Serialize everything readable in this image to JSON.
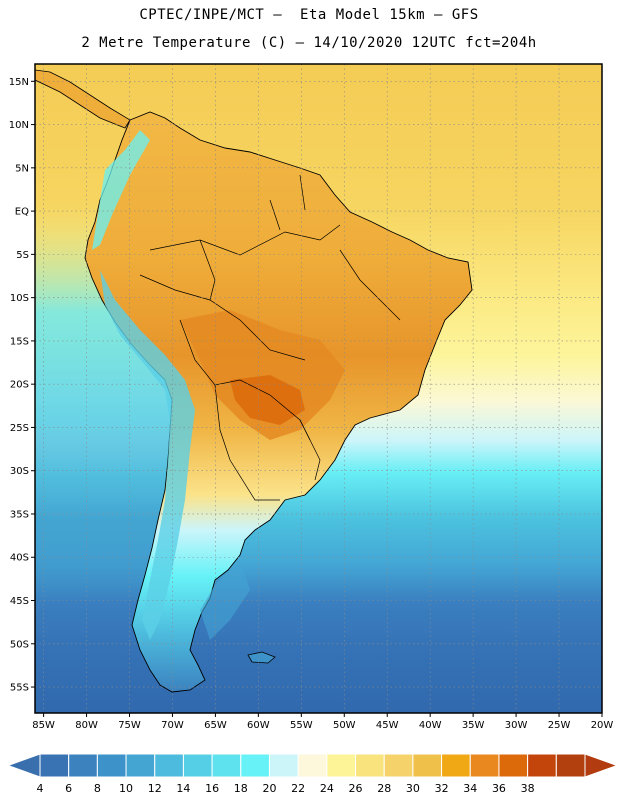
{
  "header": {
    "line1": "CPTEC/INPE/MCT –  Eta Model 15km – GFS",
    "line2": "2 Metre Temperature (C) – 14/10/2020 12UTC fct=204h"
  },
  "axes": {
    "lat_labels": [
      "15N",
      "10N",
      "5N",
      "EQ",
      "5S",
      "10S",
      "15S",
      "20S",
      "25S",
      "30S",
      "35S",
      "40S",
      "45S",
      "50S",
      "55S"
    ],
    "lat_values": [
      15,
      10,
      5,
      0,
      -5,
      -10,
      -15,
      -20,
      -25,
      -30,
      -35,
      -40,
      -45,
      -50,
      -55
    ],
    "lon_labels": [
      "85W",
      "80W",
      "75W",
      "70W",
      "65W",
      "60W",
      "55W",
      "50W",
      "45W",
      "40W",
      "35W",
      "30W",
      "25W",
      "20W"
    ],
    "lon_values": [
      -85,
      -80,
      -75,
      -70,
      -65,
      -60,
      -55,
      -50,
      -45,
      -40,
      -35,
      -30,
      -25,
      -20
    ],
    "lon_range": [
      -86,
      -20
    ],
    "lat_range": [
      -58,
      17
    ]
  },
  "colorbar": {
    "labels": [
      "4",
      "6",
      "8",
      "10",
      "12",
      "14",
      "16",
      "18",
      "20",
      "22",
      "24",
      "26",
      "28",
      "30",
      "32",
      "34",
      "36",
      "38"
    ],
    "colors": [
      "#3a73b3",
      "#3b82bf",
      "#3d92c9",
      "#44a5d3",
      "#4dbbdd",
      "#55cfe5",
      "#5ee2ee",
      "#66f2f7",
      "#ccf5fa",
      "#fdf7dc",
      "#fdf497",
      "#f9e37d",
      "#f5d36a",
      "#f0c14a",
      "#f0a814",
      "#e8881e",
      "#dc6a0b",
      "#c4450b",
      "#b2400f"
    ],
    "under_color": "#3a6fae",
    "over_color": "#b23c10"
  },
  "map_colors": {
    "ocean_north": "#f5cf57",
    "ocean_subtropic": "#fdf497",
    "ocean_mid": "#5bd0e6",
    "ocean_south": "#2f6fb3",
    "land_hot": "#e48a22",
    "land_warm": "#f0b440",
    "land_cool": "#66e7f1",
    "borders": "#000000"
  }
}
